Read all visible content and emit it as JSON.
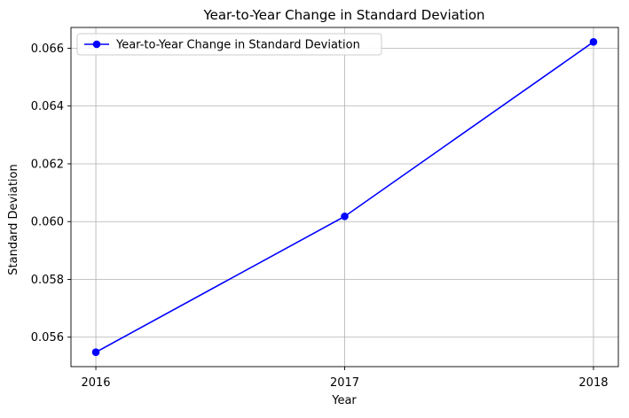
{
  "chart_data": {
    "type": "line",
    "title": "Year-to-Year Change in Standard Deviation",
    "xlabel": "Year",
    "ylabel": "Standard Deviation",
    "categories": [
      "2016",
      "2017",
      "2018"
    ],
    "series": [
      {
        "name": "Year-to-Year Change in Standard Deviation",
        "values": [
          0.05548,
          0.06018,
          0.06622
        ],
        "color": "#0000ff",
        "marker": "circle"
      }
    ],
    "ylim": [
      0.05498,
      0.06672
    ],
    "y_ticks": [
      0.056,
      0.058,
      0.06,
      0.062,
      0.064,
      0.066
    ],
    "y_tick_labels": [
      "0.056",
      "0.058",
      "0.060",
      "0.062",
      "0.064",
      "0.066"
    ],
    "grid": true,
    "legend_position": "top-left"
  }
}
